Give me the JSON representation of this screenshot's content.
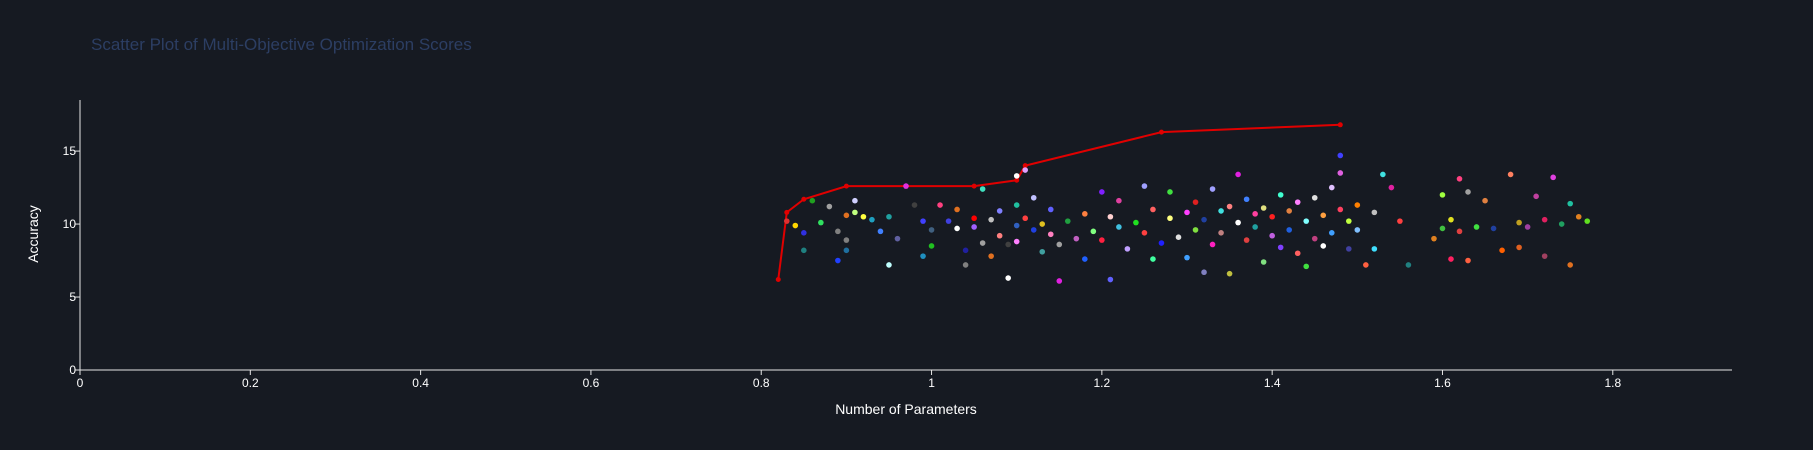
{
  "chart_data": {
    "type": "scatter",
    "title": "Scatter Plot of Multi-Objective Optimization Scores",
    "xlabel": "Number of Parameters",
    "ylabel": "Accuracy",
    "xlim": [
      0,
      1.94
    ],
    "ylim": [
      0,
      18.5
    ],
    "x_ticks": [
      0,
      0.2,
      0.4,
      0.6,
      0.8,
      1,
      1.2,
      1.4,
      1.6,
      1.8
    ],
    "x_tick_labels": [
      "0",
      "0.2",
      "0.4",
      "0.6",
      "0.8",
      "1",
      "1.2",
      "1.4",
      "1.6",
      "1.8"
    ],
    "y_ticks": [
      0,
      5,
      10,
      15
    ],
    "y_tick_labels": [
      "0",
      "5",
      "10",
      "15"
    ],
    "grid": false,
    "legend": "none",
    "pareto_front": {
      "color": "#e00000",
      "points": [
        [
          0.82,
          6.2
        ],
        [
          0.83,
          10.8
        ],
        [
          0.85,
          11.7
        ],
        [
          0.9,
          12.6
        ],
        [
          1.05,
          12.6
        ],
        [
          1.1,
          13.0
        ],
        [
          1.11,
          14.0
        ],
        [
          1.27,
          16.3
        ],
        [
          1.48,
          16.8
        ]
      ]
    },
    "points": [
      [
        0.83,
        10.2,
        "#e03030"
      ],
      [
        0.84,
        9.9,
        "#ffd700"
      ],
      [
        0.85,
        8.2,
        "#1f8080"
      ],
      [
        0.85,
        9.4,
        "#3030e0"
      ],
      [
        0.86,
        11.6,
        "#20a020"
      ],
      [
        0.87,
        10.1,
        "#30e060"
      ],
      [
        0.88,
        11.2,
        "#a0a0a0"
      ],
      [
        0.89,
        9.5,
        "#808080"
      ],
      [
        0.89,
        7.5,
        "#2040ff"
      ],
      [
        0.9,
        10.6,
        "#e07020"
      ],
      [
        0.9,
        8.9,
        "#808080"
      ],
      [
        0.9,
        8.2,
        "#1f6f9f"
      ],
      [
        0.91,
        10.8,
        "#c0ff80"
      ],
      [
        0.91,
        11.6,
        "#d0d0ff"
      ],
      [
        0.92,
        10.5,
        "#ffff40"
      ],
      [
        0.93,
        10.3,
        "#1f9fbf"
      ],
      [
        0.94,
        9.5,
        "#4080ff"
      ],
      [
        0.95,
        10.5,
        "#20a0a0"
      ],
      [
        0.95,
        7.2,
        "#c0ffff"
      ],
      [
        0.96,
        9.0,
        "#6060a0"
      ],
      [
        0.97,
        12.6,
        "#e030e0"
      ],
      [
        0.98,
        11.3,
        "#404040"
      ],
      [
        0.99,
        10.2,
        "#4040ff"
      ],
      [
        0.99,
        7.8,
        "#1f8fbf"
      ],
      [
        1.0,
        9.6,
        "#406080"
      ],
      [
        1.0,
        8.5,
        "#20c020"
      ],
      [
        1.01,
        11.3,
        "#ff4080"
      ],
      [
        1.02,
        10.2,
        "#4040e0"
      ],
      [
        1.03,
        9.7,
        "#ffffff"
      ],
      [
        1.03,
        11.0,
        "#e07020"
      ],
      [
        1.04,
        8.2,
        "#2020a0"
      ],
      [
        1.04,
        7.2,
        "#808080"
      ],
      [
        1.05,
        10.4,
        "#ff0000"
      ],
      [
        1.05,
        9.8,
        "#a060ff"
      ],
      [
        1.06,
        12.4,
        "#40e0c0"
      ],
      [
        1.06,
        8.7,
        "#a0a0a0"
      ],
      [
        1.07,
        10.3,
        "#c0c0c0"
      ],
      [
        1.07,
        7.8,
        "#e07020"
      ],
      [
        1.08,
        9.2,
        "#ff8080"
      ],
      [
        1.08,
        10.9,
        "#8080ff"
      ],
      [
        1.09,
        8.6,
        "#404040"
      ],
      [
        1.09,
        6.3,
        "#ffffff"
      ],
      [
        1.1,
        11.3,
        "#20c0a0"
      ],
      [
        1.1,
        9.9,
        "#3060c0"
      ],
      [
        1.1,
        8.8,
        "#ff80ff"
      ],
      [
        1.1,
        13.3,
        "#ffffff"
      ],
      [
        1.11,
        13.7,
        "#e0a0ff"
      ],
      [
        1.11,
        10.4,
        "#ff4040"
      ],
      [
        1.12,
        9.6,
        "#2040e0"
      ],
      [
        1.12,
        11.8,
        "#c0c0ff"
      ],
      [
        1.13,
        8.1,
        "#40a0a0"
      ],
      [
        1.13,
        10.0,
        "#e0c020"
      ],
      [
        1.14,
        9.3,
        "#ff80c0"
      ],
      [
        1.14,
        11.0,
        "#6060ff"
      ],
      [
        1.15,
        6.1,
        "#e020e0"
      ],
      [
        1.15,
        8.6,
        "#a0a0a0"
      ],
      [
        1.16,
        10.2,
        "#20a040"
      ],
      [
        1.17,
        9.0,
        "#c060c0"
      ],
      [
        1.18,
        7.6,
        "#2060ff"
      ],
      [
        1.18,
        10.7,
        "#ff8040"
      ],
      [
        1.19,
        9.5,
        "#80ff80"
      ],
      [
        1.2,
        12.2,
        "#8020ff"
      ],
      [
        1.2,
        8.9,
        "#ff2040"
      ],
      [
        1.21,
        10.5,
        "#ffd0d0"
      ],
      [
        1.21,
        6.2,
        "#6060ff"
      ],
      [
        1.22,
        11.6,
        "#e040a0"
      ],
      [
        1.22,
        9.8,
        "#40c0e0"
      ],
      [
        1.23,
        8.3,
        "#c0a0ff"
      ],
      [
        1.24,
        10.1,
        "#20e020"
      ],
      [
        1.25,
        12.6,
        "#a0a0ff"
      ],
      [
        1.25,
        9.4,
        "#ff4040"
      ],
      [
        1.26,
        7.6,
        "#40ffa0"
      ],
      [
        1.26,
        11.0,
        "#ff6060"
      ],
      [
        1.27,
        8.7,
        "#2020ff"
      ],
      [
        1.28,
        10.4,
        "#ffff80"
      ],
      [
        1.28,
        12.2,
        "#40e040"
      ],
      [
        1.29,
        9.1,
        "#e0e0e0"
      ],
      [
        1.3,
        10.8,
        "#ff40ff"
      ],
      [
        1.3,
        7.7,
        "#40a0ff"
      ],
      [
        1.31,
        11.5,
        "#e02020"
      ],
      [
        1.31,
        9.6,
        "#80e040"
      ],
      [
        1.32,
        10.3,
        "#2040a0"
      ],
      [
        1.32,
        6.7,
        "#8080c0"
      ],
      [
        1.33,
        12.4,
        "#a0a0ff"
      ],
      [
        1.33,
        8.6,
        "#ff20c0"
      ],
      [
        1.34,
        10.9,
        "#40e0e0"
      ],
      [
        1.34,
        9.4,
        "#c08080"
      ],
      [
        1.35,
        11.2,
        "#ff8080"
      ],
      [
        1.35,
        6.6,
        "#c0c040"
      ],
      [
        1.36,
        10.1,
        "#ffffff"
      ],
      [
        1.36,
        13.4,
        "#e020e0"
      ],
      [
        1.37,
        8.9,
        "#e04040"
      ],
      [
        1.37,
        11.7,
        "#4080ff"
      ],
      [
        1.38,
        9.8,
        "#20a0a0"
      ],
      [
        1.38,
        10.7,
        "#ff40a0"
      ],
      [
        1.39,
        7.4,
        "#80e080"
      ],
      [
        1.39,
        11.1,
        "#e0e080"
      ],
      [
        1.4,
        9.2,
        "#c060e0"
      ],
      [
        1.4,
        10.5,
        "#ff2020"
      ],
      [
        1.41,
        12.0,
        "#40ffd0"
      ],
      [
        1.41,
        8.4,
        "#8040ff"
      ],
      [
        1.42,
        10.9,
        "#e08040"
      ],
      [
        1.42,
        9.6,
        "#2060e0"
      ],
      [
        1.43,
        11.5,
        "#ff80ff"
      ],
      [
        1.43,
        8.0,
        "#ff6060"
      ],
      [
        1.44,
        10.2,
        "#80ffff"
      ],
      [
        1.44,
        7.1,
        "#40e040"
      ],
      [
        1.45,
        11.8,
        "#e0e0e0"
      ],
      [
        1.45,
        9.0,
        "#c04080"
      ],
      [
        1.46,
        10.6,
        "#ffa040"
      ],
      [
        1.46,
        8.5,
        "#ffffff"
      ],
      [
        1.47,
        12.5,
        "#e0c0ff"
      ],
      [
        1.47,
        9.4,
        "#40a0ff"
      ],
      [
        1.48,
        11.0,
        "#ff4060"
      ],
      [
        1.48,
        13.5,
        "#e060e0"
      ],
      [
        1.48,
        14.7,
        "#4040ff"
      ],
      [
        1.49,
        10.2,
        "#c0ff40"
      ],
      [
        1.49,
        8.3,
        "#4040a0"
      ],
      [
        1.5,
        11.3,
        "#ff8000"
      ],
      [
        1.5,
        9.6,
        "#80c0ff"
      ],
      [
        1.51,
        7.2,
        "#ff6040"
      ],
      [
        1.52,
        10.8,
        "#c0c0c0"
      ],
      [
        1.52,
        8.3,
        "#40e0ff"
      ],
      [
        1.53,
        13.4,
        "#40e0e0"
      ],
      [
        1.54,
        12.5,
        "#e020a0"
      ],
      [
        1.55,
        10.2,
        "#ff4040"
      ],
      [
        1.56,
        7.2,
        "#208080"
      ],
      [
        1.59,
        9.0,
        "#e08020"
      ],
      [
        1.6,
        12.0,
        "#a0ff40"
      ],
      [
        1.6,
        9.7,
        "#40c040"
      ],
      [
        1.61,
        10.3,
        "#e0e020"
      ],
      [
        1.61,
        7.6,
        "#ff2060"
      ],
      [
        1.62,
        13.1,
        "#ff4080"
      ],
      [
        1.62,
        9.5,
        "#e04040"
      ],
      [
        1.63,
        12.2,
        "#a0a0a0"
      ],
      [
        1.63,
        7.5,
        "#ff6040"
      ],
      [
        1.64,
        9.8,
        "#40e040"
      ],
      [
        1.65,
        11.6,
        "#e08040"
      ],
      [
        1.66,
        9.7,
        "#2040a0"
      ],
      [
        1.67,
        8.2,
        "#ff6000"
      ],
      [
        1.68,
        13.4,
        "#ff8060"
      ],
      [
        1.69,
        10.1,
        "#c0a020"
      ],
      [
        1.69,
        8.4,
        "#e06020"
      ],
      [
        1.7,
        9.8,
        "#a040a0"
      ],
      [
        1.71,
        11.9,
        "#c040a0"
      ],
      [
        1.72,
        10.3,
        "#e02060"
      ],
      [
        1.72,
        7.8,
        "#a04060"
      ],
      [
        1.73,
        13.2,
        "#e040e0"
      ],
      [
        1.74,
        10.0,
        "#20a060"
      ],
      [
        1.75,
        11.4,
        "#20c0a0"
      ],
      [
        1.75,
        7.2,
        "#e07020"
      ],
      [
        1.76,
        10.5,
        "#e08020"
      ],
      [
        1.77,
        10.2,
        "#60e020"
      ]
    ]
  }
}
